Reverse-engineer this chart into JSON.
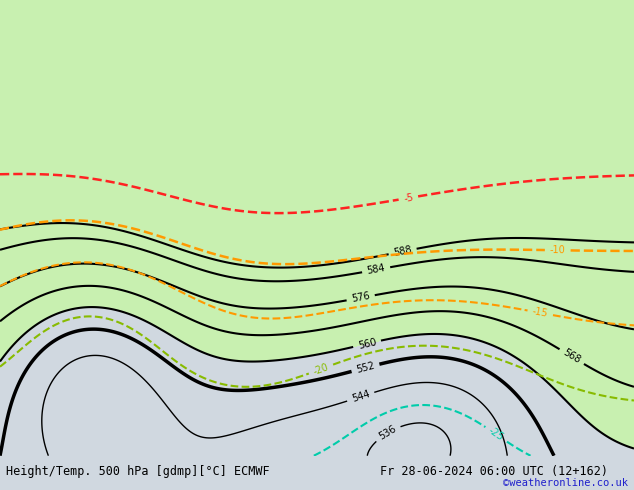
{
  "title_left": "Height/Temp. 500 hPa [gdmp][°C] ECMWF",
  "title_right": "Fr 28-06-2024 06:00 UTC (12+162)",
  "credit": "©weatheronline.co.uk",
  "ocean_color": "#d0d8e0",
  "land_color": "#d0d0d0",
  "highlight_color": "#c8f0b0",
  "bottom_bar_color": "#e0e0e0",
  "title_fontsize": 8.5,
  "credit_color": "#2020cc",
  "geop_line_color": "#000000",
  "lon_min": 95,
  "lon_max": 185,
  "lat_min": -57,
  "lat_max": -3
}
